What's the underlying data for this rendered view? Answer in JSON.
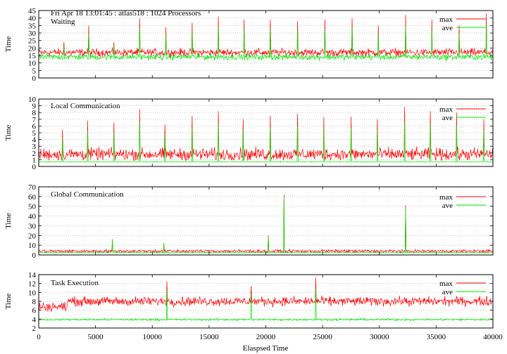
{
  "header": {
    "title": "Fri Apr 18 13:01:45 : atlas518 : 1024 Processors"
  },
  "colors": {
    "max": "#ff0000",
    "ave": "#00e600",
    "grid": "#b0b0b0"
  },
  "chart_data": [
    {
      "type": "line",
      "title": "Waiting",
      "ylabel": "Time",
      "xlim": [
        0,
        40000
      ],
      "ylim": [
        0,
        45
      ],
      "yticks": [
        0,
        5,
        10,
        15,
        20,
        25,
        30,
        35,
        40,
        45
      ],
      "grid": true,
      "legend": "top-right",
      "series": [
        {
          "name": "max",
          "base": 17,
          "noise": 2.5,
          "min": 12,
          "max": 45
        },
        {
          "name": "ave",
          "base": 14,
          "noise": 2.0,
          "min": 6,
          "max": 45
        }
      ],
      "spikes": [
        {
          "x": 2200,
          "y": 24
        },
        {
          "x": 4400,
          "y": 35
        },
        {
          "x": 6600,
          "y": 24
        },
        {
          "x": 8900,
          "y": 40
        },
        {
          "x": 11200,
          "y": 34
        },
        {
          "x": 13500,
          "y": 37
        },
        {
          "x": 15800,
          "y": 41
        },
        {
          "x": 18100,
          "y": 39
        },
        {
          "x": 20400,
          "y": 39
        },
        {
          "x": 22800,
          "y": 38
        },
        {
          "x": 25200,
          "y": 39
        },
        {
          "x": 27600,
          "y": 40
        },
        {
          "x": 29900,
          "y": 35
        },
        {
          "x": 32300,
          "y": 42
        },
        {
          "x": 34600,
          "y": 39
        },
        {
          "x": 37000,
          "y": 35
        },
        {
          "x": 39400,
          "y": 43
        }
      ]
    },
    {
      "type": "line",
      "title": "Local Communication",
      "ylabel": "Time",
      "xlim": [
        0,
        40000
      ],
      "ylim": [
        0,
        10
      ],
      "yticks": [
        0,
        1,
        2,
        3,
        4,
        5,
        6,
        7,
        8,
        9,
        10
      ],
      "grid": true,
      "legend": "top-right",
      "series": [
        {
          "name": "max",
          "base": 1.8,
          "noise": 0.9,
          "min": 0.9,
          "max": 10
        },
        {
          "name": "ave",
          "base": 0.7,
          "noise": 0.05,
          "min": 0.5,
          "max": 10
        }
      ],
      "spikes": [
        {
          "x": 2100,
          "y": 5.5
        },
        {
          "x": 4300,
          "y": 6.8
        },
        {
          "x": 6600,
          "y": 6.5
        },
        {
          "x": 8900,
          "y": 8.5
        },
        {
          "x": 11100,
          "y": 6.2
        },
        {
          "x": 13500,
          "y": 7.5
        },
        {
          "x": 15800,
          "y": 8.2
        },
        {
          "x": 18000,
          "y": 7.0
        },
        {
          "x": 20400,
          "y": 7.5
        },
        {
          "x": 22800,
          "y": 7.8
        },
        {
          "x": 25100,
          "y": 7.3
        },
        {
          "x": 27500,
          "y": 7.4
        },
        {
          "x": 29800,
          "y": 7.0
        },
        {
          "x": 32200,
          "y": 8.8
        },
        {
          "x": 34500,
          "y": 8.2
        },
        {
          "x": 36800,
          "y": 8.0
        },
        {
          "x": 39200,
          "y": 7.0
        }
      ]
    },
    {
      "type": "line",
      "title": "Global Communication",
      "ylabel": "Time",
      "xlim": [
        0,
        40000
      ],
      "ylim": [
        0,
        70
      ],
      "yticks": [
        0,
        10,
        20,
        30,
        40,
        50,
        60,
        70
      ],
      "grid": true,
      "legend": "top-right",
      "series": [
        {
          "name": "max",
          "base": 4,
          "noise": 1.5,
          "min": 1.5,
          "max": 70
        },
        {
          "name": "ave",
          "base": 2.5,
          "noise": 0.6,
          "min": 1.0,
          "max": 70
        }
      ],
      "spikes": [
        {
          "x": 6500,
          "y": 16
        },
        {
          "x": 11000,
          "y": 12
        },
        {
          "x": 20200,
          "y": 20
        },
        {
          "x": 21600,
          "y": 62
        },
        {
          "x": 32300,
          "y": 51
        }
      ]
    },
    {
      "type": "line",
      "title": "Task Execution",
      "ylabel": "Time",
      "xlabel": "Elaspsed Time",
      "xlim": [
        0,
        40000
      ],
      "ylim": [
        2,
        14
      ],
      "yticks": [
        2,
        4,
        6,
        8,
        10,
        12,
        14
      ],
      "xticks": [
        0,
        5000,
        10000,
        15000,
        20000,
        25000,
        30000,
        35000,
        40000
      ],
      "grid": true,
      "legend": "top-right",
      "series": [
        {
          "name": "max",
          "base": 8.0,
          "noise": 1.0,
          "min": 5,
          "max": 14
        },
        {
          "name": "ave",
          "base": 3.9,
          "noise": 0.25,
          "min": 3.2,
          "max": 14
        }
      ],
      "spikes": [
        {
          "x": 11300,
          "y": 12.5
        },
        {
          "x": 24400,
          "y": 13.3
        },
        {
          "x": 18700,
          "y": 11.5
        }
      ]
    }
  ]
}
